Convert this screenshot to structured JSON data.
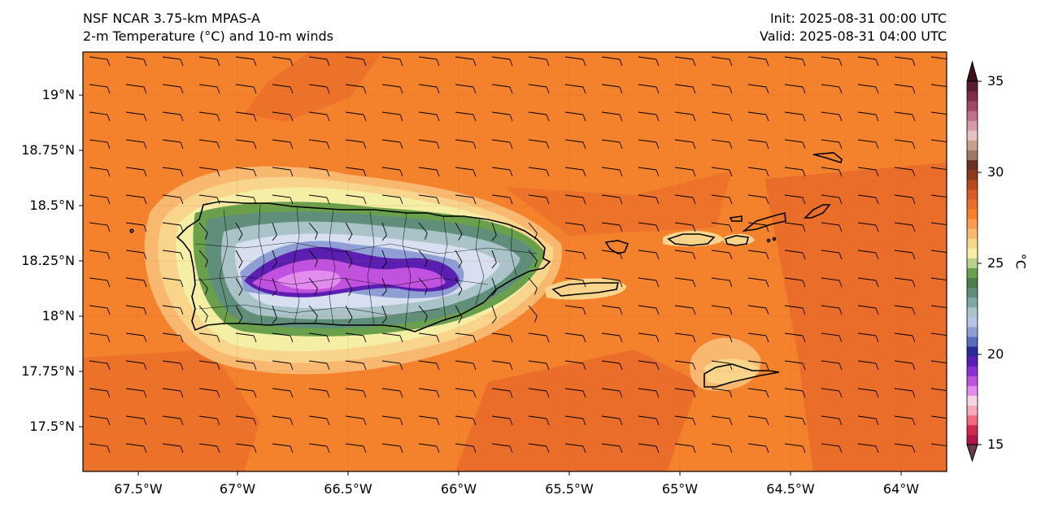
{
  "header": {
    "title_line1": "NSF NCAR 3.75-km MPAS-A",
    "title_line2": "2-m Temperature (°C) and 10-m winds",
    "init_text": "Init: 2025-08-31 00:00 UTC",
    "valid_text": "Valid: 2025-08-31 04:00 UTC"
  },
  "map": {
    "lon_range": [
      -67.75,
      -63.8
    ],
    "lat_range": [
      17.3,
      19.2
    ],
    "lon_ticks": [
      "67.5°W",
      "67°W",
      "66.5°W",
      "66°W",
      "65.5°W",
      "65°W",
      "64.5°W",
      "64°W"
    ],
    "lat_ticks": [
      "19°N",
      "18.75°N",
      "18.5°N",
      "18.25°N",
      "18°N",
      "17.75°N",
      "17.5°N"
    ],
    "background_color": "#f4812c",
    "land_outline_color": "#000000",
    "features": [
      "Puerto Rico",
      "Vieques",
      "Culebra",
      "St. Thomas",
      "St. John",
      "Tortola",
      "Virgin Gorda",
      "Anegada",
      "St. Croix"
    ]
  },
  "colorbar": {
    "label": "°C",
    "ticks": [
      "35",
      "30",
      "25",
      "20",
      "15"
    ],
    "range": [
      15,
      35
    ],
    "colors": [
      "#b0154a",
      "#d02a4f",
      "#f06b7f",
      "#f7a8b8",
      "#f6d4e6",
      "#e38cf0",
      "#c152e0",
      "#8c2fd0",
      "#5a1eb0",
      "#2a2a9a",
      "#5a6cc0",
      "#8f9fd6",
      "#b8c4e4",
      "#a9c3c8",
      "#7fa8a2",
      "#5f8f7a",
      "#4a7e4a",
      "#6aa04c",
      "#b5d18c",
      "#f4efa4",
      "#f9d58c",
      "#f9b870",
      "#f99a50",
      "#f4812c",
      "#ea6e2a",
      "#d85a24",
      "#b8481e",
      "#8e3a1c",
      "#6a3020",
      "#a07868",
      "#c8a090",
      "#e6c2c0",
      "#d69aa8",
      "#c07088",
      "#a04868",
      "#7e2e4a",
      "#5a1c30"
    ]
  }
}
